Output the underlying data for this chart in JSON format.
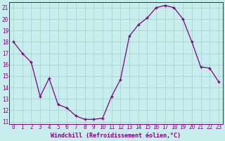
{
  "x": [
    0,
    1,
    2,
    3,
    4,
    5,
    6,
    7,
    8,
    9,
    10,
    11,
    12,
    13,
    14,
    15,
    16,
    17,
    18,
    19,
    20,
    21,
    22,
    23
  ],
  "y": [
    18.0,
    17.0,
    16.2,
    13.2,
    14.8,
    12.5,
    12.2,
    11.5,
    11.2,
    11.2,
    11.3,
    13.2,
    14.7,
    18.5,
    19.5,
    20.1,
    21.0,
    21.2,
    21.0,
    20.0,
    18.0,
    15.8,
    15.7,
    14.5
  ],
  "line_color": "#800080",
  "marker": "D",
  "marker_size": 2.5,
  "bg_color": "#c8eded",
  "grid_color": "#a8d4d4",
  "xlabel": "Windchill (Refroidissement éolien,°C)",
  "xlabel_color": "#800080",
  "tick_color": "#800080",
  "ylim_min": 10.8,
  "ylim_max": 21.5,
  "yticks": [
    11,
    12,
    13,
    14,
    15,
    16,
    17,
    18,
    19,
    20,
    21
  ],
  "xticks": [
    0,
    1,
    2,
    3,
    4,
    5,
    6,
    7,
    8,
    9,
    10,
    11,
    12,
    13,
    14,
    15,
    16,
    17,
    18,
    19,
    20,
    21,
    22,
    23
  ],
  "font_family": "monospace",
  "tick_fontsize": 5.5,
  "xlabel_fontsize": 6.0
}
